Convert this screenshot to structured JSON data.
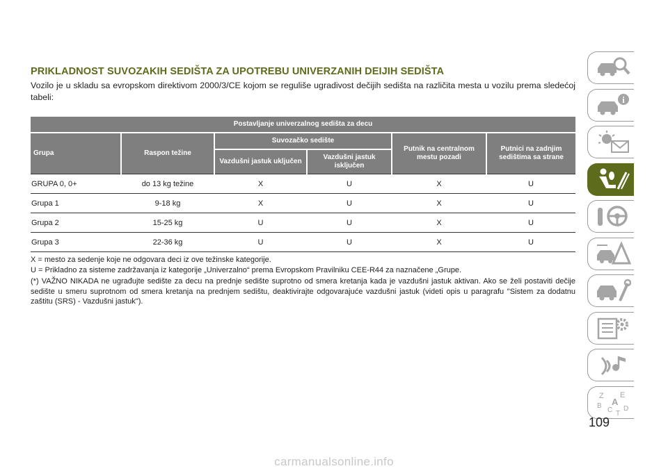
{
  "heading": "PRIKLADNOST SUVOZAKIH SEDIŠTA ZA UPOTREBU UNIVERZANIH DEIJIH SEDIŠTA",
  "intro": "Vozilo je u skladu sa evropskom direktivom 2000/3/CE kojom se reguliše ugradivost dečijih sedišta na različita mesta u vozilu prema sledećoj tabeli:",
  "table": {
    "top_header": "Postavljanje univerzalnog sedišta za decu",
    "col_group": "Grupa",
    "col_weight": "Raspon težine",
    "col_passenger": "Suvozačko sedište",
    "col_airbag_on": "Vazdušni jastuk uključen",
    "col_airbag_off": "Vazdušni jastuk isključen",
    "col_center": "Putnik na centralnom mestu pozadi",
    "col_rear": "Putnici na zadnjim sedištima sa strane",
    "rows": [
      {
        "group": "GRUPA 0, 0+",
        "weight": "do 13 kg težine",
        "on": "X",
        "off": "U",
        "center": "X",
        "rear": "U"
      },
      {
        "group": "Grupa 1",
        "weight": "9-18 kg",
        "on": "X",
        "off": "U",
        "center": "X",
        "rear": "U"
      },
      {
        "group": "Grupa 2",
        "weight": "15-25 kg",
        "on": "U",
        "off": "U",
        "center": "X",
        "rear": "U"
      },
      {
        "group": "Grupa 3",
        "weight": "22-36 kg",
        "on": "U",
        "off": "U",
        "center": "X",
        "rear": "U"
      }
    ]
  },
  "notes": {
    "x_note": "X = mesto za sedenje koje ne odgovara deci iz ove težinske kategorije.",
    "u_note": "U = Prikladno za sisteme zadržavanja iz kategorije „Univerzalno“ prema Evropskom Pravilniku CEE-R44 za naznačene „Grupe.",
    "warning": "(*) VAŽNO NIKADA ne ugrađujte sedište za decu na prednje sedište suprotno od smera kretanja kada je vazdušni jastuk aktivan. Ako se želi postaviti dečije sedište u smeru suprotnom od smera kretanja na prednjem sedištu, deaktivirajte odgovarajuće vazdušni jastuk (videti opis u paragrafu \"Sistem za dodatnu zaštitu (SRS) - Vazdušni jastuk\")."
  },
  "sidebar": {
    "tabs": [
      {
        "icon": "car-search-icon"
      },
      {
        "icon": "car-info-icon"
      },
      {
        "icon": "warning-light-mail-icon"
      },
      {
        "icon": "seat-airbag-icon",
        "active": true
      },
      {
        "icon": "steering-wheel-icon"
      },
      {
        "icon": "car-warning-triangle-icon"
      },
      {
        "icon": "car-wrench-icon"
      },
      {
        "icon": "spec-sheet-gear-icon"
      },
      {
        "icon": "multimedia-music-icon"
      },
      {
        "icon": "alphabet-index-icon"
      }
    ],
    "index_letters": [
      "Z",
      "E",
      "A",
      "B",
      "C",
      "D",
      "T"
    ],
    "active_color": "#5d6b1c"
  },
  "page_number": "109",
  "watermark": "carmanualsonline.info"
}
